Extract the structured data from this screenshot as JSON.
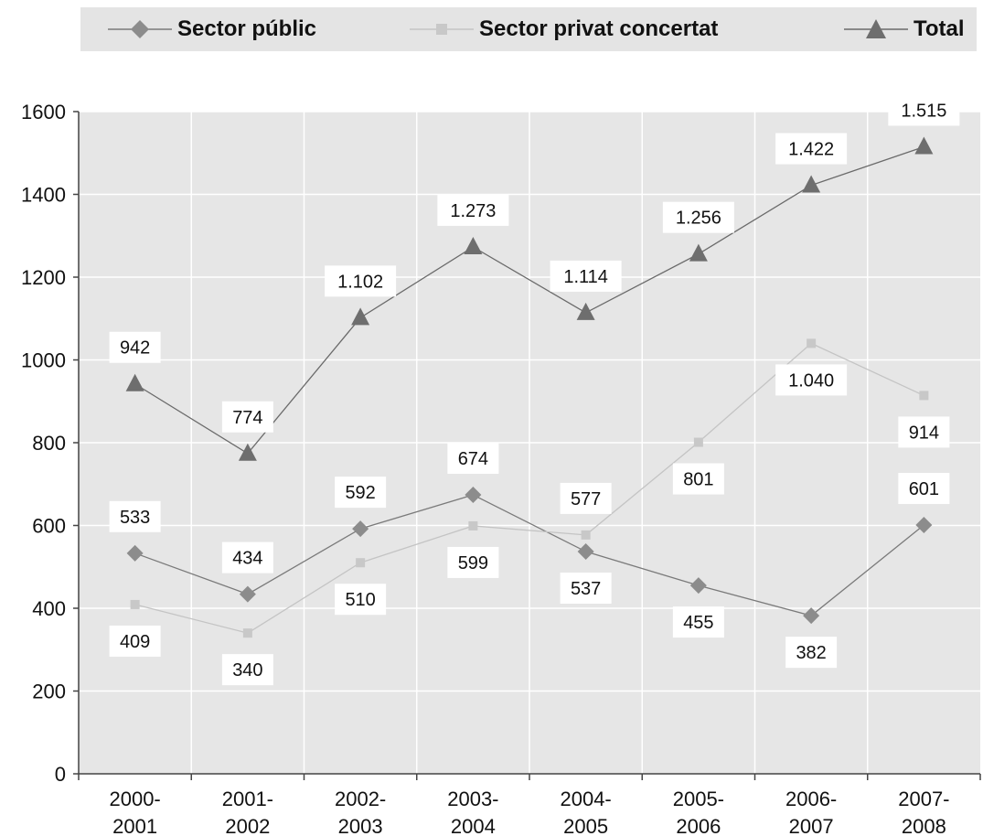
{
  "chart_data": {
    "type": "line",
    "title": "",
    "xlabel": "",
    "ylabel": "",
    "ylim": [
      0,
      1600
    ],
    "yticks": [
      "0",
      "200",
      "400",
      "600",
      "800",
      "1000",
      "1200",
      "1400",
      "1600"
    ],
    "grid": true,
    "legend_position": "top",
    "categories": [
      [
        "2000-",
        "2001"
      ],
      [
        "2001-",
        "2002"
      ],
      [
        "2002-",
        "2003"
      ],
      [
        "2003-",
        "2004"
      ],
      [
        "2004-",
        "2005"
      ],
      [
        "2005-",
        "2006"
      ],
      [
        "2006-",
        "2007"
      ],
      [
        "2007-",
        "2008"
      ]
    ],
    "series": [
      {
        "name": "Sector públic",
        "marker": "diamond",
        "color": "#8c8c8c",
        "line_color": "#7a7a7a",
        "values": [
          533,
          434,
          592,
          674,
          537,
          455,
          382,
          601
        ],
        "labels": [
          "533",
          "434",
          "592",
          "674",
          "537",
          "455",
          "382",
          "601"
        ]
      },
      {
        "name": "Sector privat concertat",
        "marker": "square",
        "color": "#c8c8c8",
        "line_color": "#c4c4c4",
        "values": [
          409,
          340,
          510,
          599,
          577,
          801,
          1040,
          914
        ],
        "labels": [
          "409",
          "340",
          "510",
          "599",
          "577",
          "801",
          "1.040",
          "914"
        ]
      },
      {
        "name": "Total",
        "marker": "triangle",
        "color": "#6e6e6e",
        "line_color": "#6a6a6a",
        "values": [
          942,
          774,
          1102,
          1273,
          1114,
          1256,
          1422,
          1515
        ],
        "labels": [
          "942",
          "774",
          "1.102",
          "1.273",
          "1.114",
          "1.256",
          "1.422",
          "1.515"
        ]
      }
    ],
    "colors": {
      "plot_background": "#e6e6e6",
      "gridline": "#ffffff",
      "axis": "#444444",
      "legend_background": "#e4e4e4",
      "label_box": "#ffffff"
    }
  }
}
